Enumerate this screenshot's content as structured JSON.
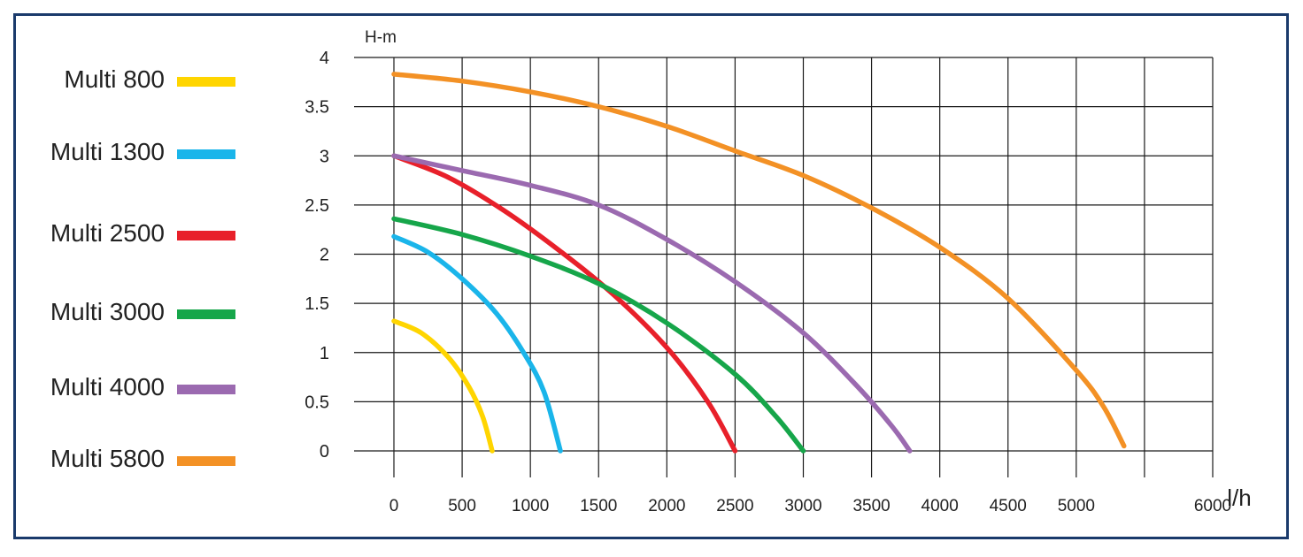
{
  "chart_data": {
    "type": "line",
    "ylabel": "H-m",
    "xlabel": "l/h",
    "xlim": [
      0,
      6000
    ],
    "ylim": [
      0,
      4
    ],
    "x_ticks": [
      "0",
      "500",
      "1000",
      "1500",
      "2000",
      "2500",
      "3000",
      "3500",
      "4000",
      "4500",
      "5000",
      "6000"
    ],
    "y_ticks": [
      "0",
      "0.5",
      "1",
      "1.5",
      "2",
      "2.5",
      "3",
      "3.5",
      "4"
    ],
    "grid": true,
    "legend_placement": "left",
    "series": [
      {
        "name": "Multi 800",
        "color": "#ffd500",
        "points": [
          [
            0,
            1.32
          ],
          [
            200,
            1.2
          ],
          [
            400,
            0.95
          ],
          [
            550,
            0.65
          ],
          [
            650,
            0.35
          ],
          [
            720,
            0.0
          ]
        ]
      },
      {
        "name": "Multi 1300",
        "color": "#1ab5ea",
        "points": [
          [
            0,
            2.18
          ],
          [
            250,
            2.02
          ],
          [
            500,
            1.75
          ],
          [
            750,
            1.4
          ],
          [
            950,
            1.0
          ],
          [
            1100,
            0.6
          ],
          [
            1220,
            0.0
          ]
        ]
      },
      {
        "name": "Multi 2500",
        "color": "#e8202a",
        "points": [
          [
            0,
            3.0
          ],
          [
            400,
            2.78
          ],
          [
            800,
            2.45
          ],
          [
            1200,
            2.05
          ],
          [
            1600,
            1.6
          ],
          [
            2000,
            1.05
          ],
          [
            2300,
            0.5
          ],
          [
            2500,
            0.0
          ]
        ]
      },
      {
        "name": "Multi 3000",
        "color": "#16a64a",
        "points": [
          [
            0,
            2.36
          ],
          [
            500,
            2.2
          ],
          [
            1000,
            1.98
          ],
          [
            1500,
            1.7
          ],
          [
            2000,
            1.3
          ],
          [
            2500,
            0.78
          ],
          [
            2800,
            0.35
          ],
          [
            3000,
            0.0
          ]
        ]
      },
      {
        "name": "Multi 4000",
        "color": "#9b6ab0",
        "points": [
          [
            0,
            3.0
          ],
          [
            500,
            2.85
          ],
          [
            1000,
            2.7
          ],
          [
            1500,
            2.5
          ],
          [
            2000,
            2.15
          ],
          [
            2500,
            1.72
          ],
          [
            3000,
            1.2
          ],
          [
            3400,
            0.65
          ],
          [
            3650,
            0.25
          ],
          [
            3780,
            0.0
          ]
        ]
      },
      {
        "name": "Multi 5800",
        "color": "#f39125",
        "points": [
          [
            0,
            3.83
          ],
          [
            500,
            3.76
          ],
          [
            1000,
            3.65
          ],
          [
            1500,
            3.5
          ],
          [
            2000,
            3.3
          ],
          [
            2500,
            3.05
          ],
          [
            3000,
            2.8
          ],
          [
            3500,
            2.47
          ],
          [
            4000,
            2.07
          ],
          [
            4500,
            1.55
          ],
          [
            5000,
            0.82
          ],
          [
            5200,
            0.45
          ],
          [
            5350,
            0.05
          ]
        ]
      }
    ]
  }
}
